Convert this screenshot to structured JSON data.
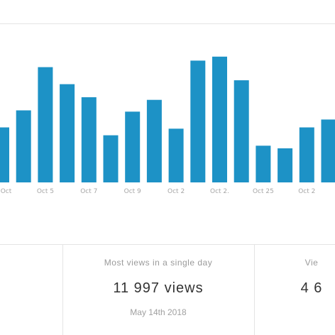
{
  "chart_data": {
    "type": "bar",
    "categories": [
      "",
      "",
      "",
      "",
      "",
      "",
      "",
      "",
      "",
      "",
      "",
      "",
      "",
      "",
      "",
      "",
      ""
    ],
    "values": [
      42,
      55,
      88,
      75,
      65,
      36,
      54,
      63,
      41,
      93,
      96,
      78,
      28,
      26,
      42,
      48,
      0
    ],
    "tick_labels": [
      "Oct",
      "Oct 5",
      "Oct 7",
      "Oct 9",
      "Oct 2",
      "Oct 2.",
      "Oct 25",
      "Oct 2"
    ],
    "ylim": [
      0,
      110
    ],
    "color": "#1d92c6",
    "grid": false
  },
  "stats": {
    "middle": {
      "label": "Most views in a single day",
      "value": "11 997 views",
      "date": "May 14th 2018"
    },
    "right": {
      "label": "Vie",
      "value": "4 6"
    }
  }
}
